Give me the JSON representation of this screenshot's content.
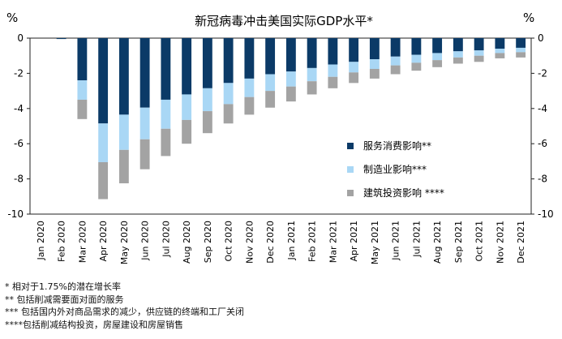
{
  "chart_data": {
    "type": "bar",
    "stacked": true,
    "title": "新冠病毒冲击美国实际GDP水平*",
    "unit_left": "%",
    "unit_right": "%",
    "ylim": [
      -10,
      0
    ],
    "yticks": [
      0,
      -2,
      -4,
      -6,
      -8,
      -10
    ],
    "categories": [
      "Jan 2020",
      "Feb 2020",
      "Mar 2020",
      "Apr 2020",
      "May 2020",
      "Jun 2020",
      "Jul 2020",
      "Aug 2020",
      "Sep 2020",
      "Oct 2020",
      "Nov 2020",
      "Dec 2020",
      "Jan 2021",
      "Feb 2021",
      "Mar 2021",
      "Apr 2021",
      "May 2021",
      "Jun 2021",
      "Jul 2021",
      "Aug 2021",
      "Sep 2021",
      "Oct 2021",
      "Nov 2021",
      "Dec 2021"
    ],
    "series": [
      {
        "name": "服务消费影响**",
        "color": "#0b3a67",
        "values": [
          0,
          -0.05,
          -2.4,
          -4.85,
          -4.35,
          -3.95,
          -3.5,
          -3.2,
          -2.85,
          -2.55,
          -2.3,
          -2.05,
          -1.9,
          -1.7,
          -1.5,
          -1.35,
          -1.2,
          -1.05,
          -0.95,
          -0.85,
          -0.75,
          -0.7,
          -0.6,
          -0.55
        ]
      },
      {
        "name": "制造业影响***",
        "color": "#a9d7f5",
        "values": [
          0,
          0,
          -1.1,
          -2.2,
          -2.0,
          -1.8,
          -1.65,
          -1.45,
          -1.3,
          -1.2,
          -1.05,
          -0.95,
          -0.85,
          -0.75,
          -0.7,
          -0.6,
          -0.55,
          -0.5,
          -0.45,
          -0.4,
          -0.35,
          -0.3,
          -0.25,
          -0.25
        ]
      },
      {
        "name": "建筑投资影响 ****",
        "color": "#a3a3a3",
        "values": [
          0,
          0,
          -1.1,
          -2.1,
          -1.9,
          -1.7,
          -1.55,
          -1.35,
          -1.25,
          -1.1,
          -1.0,
          -0.95,
          -0.85,
          -0.75,
          -0.65,
          -0.6,
          -0.55,
          -0.5,
          -0.45,
          -0.4,
          -0.35,
          -0.35,
          -0.3,
          -0.3
        ]
      }
    ],
    "legend_position": "middle-right"
  },
  "footnotes": [
    "* 相对于1.75%的潜在增长率",
    "** 包括削减需要面对面的服务",
    "*** 包括国内外对商品需求的减少，供应链的终端和工厂关闭",
    "****包括削减结构投资，房屋建设和房屋销售"
  ]
}
